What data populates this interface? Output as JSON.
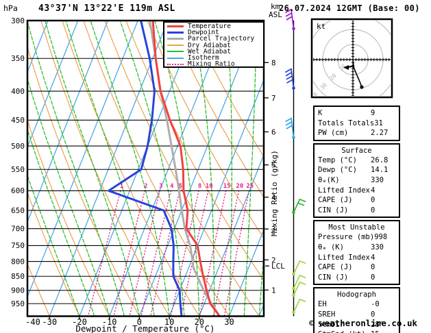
{
  "header": {
    "pressure_unit": "hPa",
    "station": "43°37'N 13°22'E 119m ASL",
    "altitude_unit_line1": "km",
    "altitude_unit_line2": "ASL",
    "datetime": "26.07.2024 12GMT (Base: 00)"
  },
  "legend": {
    "items": [
      {
        "label": "Temperature",
        "color": "#f34040",
        "thick": true,
        "dash": "solid"
      },
      {
        "label": "Dewpoint",
        "color": "#2543de",
        "thick": true,
        "dash": "solid"
      },
      {
        "label": "Parcel Trajectory",
        "color": "#adadad",
        "thick": true,
        "dash": "solid"
      },
      {
        "label": "Dry Adiabat",
        "color": "#eca24f",
        "thick": false,
        "dash": "solid"
      },
      {
        "label": "Wet Adiabat",
        "color": "#2abf2a",
        "thick": false,
        "dash": "solid"
      },
      {
        "label": "Isotherm",
        "color": "#4aa7e8",
        "thick": false,
        "dash": "solid"
      },
      {
        "label": "Mixing Ratio",
        "color": "#ea1f8f",
        "thick": false,
        "dash": "dotted"
      }
    ]
  },
  "chart_data": {
    "type": "line",
    "subtype": "skew-t-log-p-sounding",
    "pressure_axis": {
      "unit": "hPa",
      "ticks": [
        300,
        350,
        400,
        450,
        500,
        550,
        600,
        650,
        700,
        750,
        800,
        850,
        900,
        950
      ],
      "range": [
        300,
        1000
      ]
    },
    "temp_axis": {
      "unit": "°C",
      "ticks": [
        -40,
        -30,
        -20,
        -10,
        0,
        10,
        20,
        30
      ],
      "title": "Dewpoint / Temperature (°C)"
    },
    "altitude_axis": {
      "unit": "km ASL",
      "ticks": [
        1,
        2,
        3,
        4,
        5,
        6,
        7,
        8
      ],
      "lcl_label": "LCL",
      "lcl_pressure_hpa": 815,
      "km_to_pressure": {
        "1": 899,
        "2": 795,
        "3": 701,
        "4": 616,
        "5": 540,
        "6": 472,
        "7": 411,
        "8": 356
      }
    },
    "mixing_ratio_axis_title": "Mixing Ratio (g/kg)",
    "mixing_ratio_lines_g_kg": [
      1,
      2,
      3,
      4,
      5,
      8,
      10,
      15,
      20,
      25
    ],
    "background": {
      "isotherm_step_c": 10,
      "dry_adiabat_step_c": 10,
      "wet_adiabat_step_c": 5
    },
    "colors": {
      "temperature": "#f34040",
      "dewpoint": "#2543de",
      "parcel": "#adadad",
      "dry_adiabat": "#eca24f",
      "wet_adiabat": "#2abf2a",
      "isotherm": "#4aa7e8",
      "mixing_ratio": "#ea1f8f",
      "grid": "#000000"
    },
    "series": [
      {
        "name": "temperature",
        "points": [
          [
            1000,
            26.8
          ],
          [
            950,
            22
          ],
          [
            900,
            19
          ],
          [
            850,
            16
          ],
          [
            800,
            13
          ],
          [
            750,
            10
          ],
          [
            700,
            4
          ],
          [
            650,
            2
          ],
          [
            600,
            -2
          ],
          [
            550,
            -5
          ],
          [
            500,
            -9
          ],
          [
            450,
            -16
          ],
          [
            400,
            -23
          ],
          [
            350,
            -29
          ],
          [
            300,
            -35
          ]
        ]
      },
      {
        "name": "dewpoint",
        "points": [
          [
            1000,
            14.1
          ],
          [
            950,
            12
          ],
          [
            900,
            10
          ],
          [
            850,
            6
          ],
          [
            800,
            4
          ],
          [
            750,
            2
          ],
          [
            700,
            -1
          ],
          [
            650,
            -6
          ],
          [
            600,
            -27
          ],
          [
            550,
            -19
          ],
          [
            500,
            -20
          ],
          [
            450,
            -22
          ],
          [
            400,
            -25
          ],
          [
            350,
            -31
          ],
          [
            300,
            -39
          ]
        ]
      },
      {
        "name": "parcel",
        "points": [
          [
            1000,
            26.8
          ],
          [
            950,
            22.4
          ],
          [
            900,
            18
          ],
          [
            850,
            14
          ],
          [
            820,
            11.5
          ],
          [
            800,
            10.5
          ],
          [
            750,
            7.5
          ],
          [
            700,
            3.5
          ],
          [
            650,
            0
          ],
          [
            600,
            -3.5
          ],
          [
            550,
            -7.5
          ],
          [
            500,
            -12
          ],
          [
            450,
            -17
          ],
          [
            400,
            -23
          ],
          [
            350,
            -29
          ],
          [
            300,
            -36
          ]
        ]
      }
    ],
    "wind_barbs": [
      {
        "pressure": 310,
        "color": "#9b1fc4",
        "feathers": 3,
        "side": "left"
      },
      {
        "pressure": 395,
        "color": "#2543de",
        "feathers": 4,
        "side": "left"
      },
      {
        "pressure": 483,
        "color": "#29a8ee",
        "feathers": 3,
        "side": "left"
      },
      {
        "pressure": 655,
        "color": "#28b828",
        "feathers": 2,
        "side": "right"
      },
      {
        "pressure": 842,
        "color": "#a2d544",
        "feathers": 1,
        "side": "right"
      },
      {
        "pressure": 893,
        "color": "#a2d544",
        "feathers": 1,
        "side": "right"
      },
      {
        "pressure": 918,
        "color": "#a2d544",
        "feathers": 1,
        "side": "right"
      },
      {
        "pressure": 984,
        "color": "#a2d544",
        "feathers": 1,
        "side": "right"
      }
    ]
  },
  "hodograph": {
    "unit_label": "kt",
    "ring_spacing_kt": 10,
    "ring_labels": [
      "10",
      "20",
      "30",
      "40"
    ],
    "trace_kt": [
      [
        0,
        0
      ],
      [
        0.5,
        5
      ],
      [
        2.3,
        9.5
      ],
      [
        4.5,
        14.5
      ],
      [
        5.9,
        18.2
      ]
    ],
    "arrow_kt": {
      "from": [
        0.9,
        4.1
      ],
      "to": [
        -4.1,
        5.2
      ]
    }
  },
  "side_panel": {
    "groups": [
      {
        "title": null,
        "rows": [
          [
            "K",
            "9"
          ],
          [
            "Totals Totals",
            "31"
          ],
          [
            "PW (cm)",
            "2.27"
          ]
        ]
      },
      {
        "title": "Surface",
        "rows": [
          [
            "Temp (°C)",
            "26.8"
          ],
          [
            "Dewp (°C)",
            "14.1"
          ],
          [
            "θₑ(K)",
            "330"
          ],
          [
            "Lifted Index",
            "4"
          ],
          [
            "CAPE (J)",
            "0"
          ],
          [
            "CIN (J)",
            "0"
          ]
        ]
      },
      {
        "title": "Most Unstable",
        "rows": [
          [
            "Pressure (mb)",
            "998"
          ],
          [
            "θₑ (K)",
            "330"
          ],
          [
            "Lifted Index",
            "4"
          ],
          [
            "CAPE (J)",
            "0"
          ],
          [
            "CIN (J)",
            "0"
          ]
        ]
      },
      {
        "title": "Hodograph",
        "rows": [
          [
            "EH",
            "-0"
          ],
          [
            "SREH",
            "0"
          ],
          [
            "StmDir",
            "28°"
          ],
          [
            "StmSpd (kt)",
            "15"
          ]
        ]
      }
    ]
  },
  "footer": {
    "copyright": "© weatheronline.co.uk"
  }
}
